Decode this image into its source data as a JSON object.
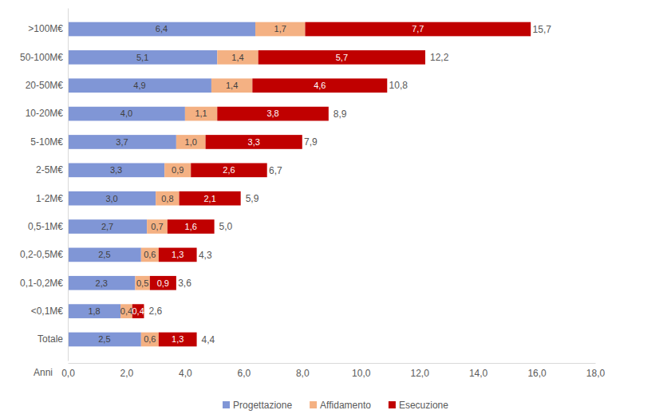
{
  "chart_data": {
    "type": "bar",
    "orientation": "horizontal",
    "stacked": true,
    "data_labels": true,
    "grid": false,
    "legend": "bottom",
    "xlabel": "Anni",
    "categories": [
      ">100M€",
      "50-100M€",
      "20-50M€",
      "10-20M€",
      "5-10M€",
      "2-5M€",
      "1-2M€",
      "0,5-1M€",
      "0,2-0,5M€",
      "0,1-0,2M€",
      "<0,1M€",
      "Totale"
    ],
    "series": [
      {
        "name": "Progettazione",
        "color": "#8096d6",
        "values": [
          6.4,
          5.1,
          4.9,
          4.0,
          3.7,
          3.3,
          3.0,
          2.7,
          2.5,
          2.3,
          1.8,
          2.5
        ],
        "value_labels": [
          "6,4",
          "5,1",
          "4,9",
          "4,0",
          "3,7",
          "3,3",
          "3,0",
          "2,7",
          "2,5",
          "2,3",
          "1,8",
          "2,5"
        ]
      },
      {
        "name": "Affidamento",
        "color": "#f4b183",
        "values": [
          1.7,
          1.4,
          1.4,
          1.1,
          1.0,
          0.9,
          0.8,
          0.7,
          0.6,
          0.5,
          0.4,
          0.6
        ],
        "value_labels": [
          "1,7",
          "1,4",
          "1,4",
          "1,1",
          "1,0",
          "0,9",
          "0,8",
          "0,7",
          "0,6",
          "0,5",
          "0,4",
          "0,6"
        ]
      },
      {
        "name": "Esecuzione",
        "color": "#c00000",
        "values": [
          7.7,
          5.7,
          4.6,
          3.8,
          3.3,
          2.6,
          2.1,
          1.6,
          1.3,
          0.9,
          0.4,
          1.3
        ],
        "value_labels": [
          "7,7",
          "5,7",
          "4,6",
          "3,8",
          "3,3",
          "2,6",
          "2,1",
          "1,6",
          "1,3",
          "0,9",
          "0,4",
          "1,3"
        ]
      }
    ],
    "totals": [
      15.7,
      12.2,
      10.8,
      8.9,
      7.9,
      6.7,
      5.9,
      5.0,
      4.3,
      3.6,
      2.6,
      4.4
    ],
    "total_labels": [
      "15,7",
      "12,2",
      "10,8",
      "8,9",
      "7,9",
      "6,7",
      "5,9",
      "5,0",
      "4,3",
      "3,6",
      "2,6",
      "4,4"
    ],
    "xlim": [
      0,
      18
    ],
    "xticks": [
      {
        "value": 0,
        "label": "0,0"
      },
      {
        "value": 2,
        "label": "2,0"
      },
      {
        "value": 4,
        "label": "4,0"
      },
      {
        "value": 6,
        "label": "6,0"
      },
      {
        "value": 8,
        "label": "8,0"
      },
      {
        "value": 10,
        "label": "10,0"
      },
      {
        "value": 12,
        "label": "12,0"
      },
      {
        "value": 14,
        "label": "14,0"
      },
      {
        "value": 16,
        "label": "16,0"
      },
      {
        "value": 18,
        "label": "18,0"
      }
    ]
  }
}
